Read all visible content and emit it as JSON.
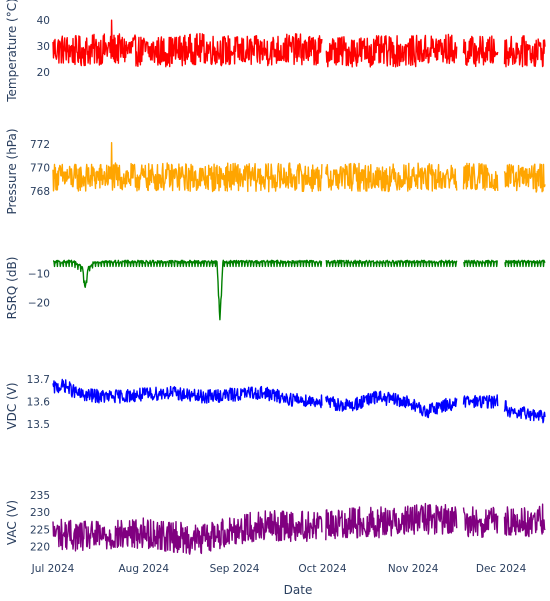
{
  "chart_data": {
    "type": "line",
    "layout": "stacked-subplots",
    "shared_x": {
      "label": "Date",
      "range": [
        "2024-07-01",
        "2024-12-16"
      ],
      "tick_values": [
        "2024-07-01",
        "2024-08-01",
        "2024-09-01",
        "2024-10-01",
        "2024-11-01",
        "2024-12-01"
      ],
      "tick_labels": [
        "Jul 2024",
        "Aug 2024",
        "Sep 2024",
        "Oct 2024",
        "Nov 2024",
        "Dec 2024"
      ]
    },
    "grid": false,
    "legend": false,
    "gaps": [
      [
        "2024-10-01",
        "2024-10-02"
      ],
      [
        "2024-11-16",
        "2024-11-18"
      ],
      [
        "2024-11-30",
        "2024-12-02"
      ]
    ],
    "panels": [
      {
        "ylabel": "Temperature (°C)",
        "color": "#ff0000",
        "ylim": [
          15,
          42
        ],
        "yticks": [
          20,
          30,
          40
        ],
        "ytick_labels": [
          "20",
          "30",
          "40"
        ],
        "series": [
          {
            "x": [
              "2024-07-01",
              "2024-07-10",
              "2024-07-20",
              "2024-08-01",
              "2024-08-10",
              "2024-08-20",
              "2024-09-01",
              "2024-09-10",
              "2024-09-20",
              "2024-10-01",
              "2024-10-10",
              "2024-10-20",
              "2024-11-01",
              "2024-11-10",
              "2024-11-20",
              "2024-12-01",
              "2024-12-10",
              "2024-12-16"
            ],
            "y": [
              29,
              28,
              29,
              28,
              28,
              29,
              28,
              28,
              29,
              28,
              28,
              28,
              28,
              29,
              28,
              28,
              28,
              28
            ],
            "spread": 6,
            "max": 40,
            "min": 16
          }
        ]
      },
      {
        "ylabel": "Pressure (hPa)",
        "color": "#ffa500",
        "ylim": [
          766.8,
          772.5
        ],
        "yticks": [
          768,
          770,
          772
        ],
        "ytick_labels": [
          "768",
          "770",
          "772"
        ],
        "series": [
          {
            "x": [
              "2024-07-01",
              "2024-07-10",
              "2024-07-20",
              "2024-08-01",
              "2024-08-10",
              "2024-08-20",
              "2024-09-01",
              "2024-09-10",
              "2024-09-20",
              "2024-10-01",
              "2024-10-10",
              "2024-10-20",
              "2024-11-01",
              "2024-11-10",
              "2024-11-20",
              "2024-12-01",
              "2024-12-10",
              "2024-12-16"
            ],
            "y": [
              769.2,
              769.1,
              769.2,
              769.1,
              769.2,
              769.1,
              769.2,
              769.1,
              769.2,
              769.1,
              769.2,
              769.1,
              769.2,
              769.1,
              769.2,
              769.1,
              769.1,
              769.1
            ],
            "spread": 1.2,
            "max": 772.1,
            "min": 767.1
          }
        ]
      },
      {
        "ylabel": "RSRQ (dB)",
        "color": "#008000",
        "ylim": [
          -27,
          -3
        ],
        "yticks": [
          -10,
          -20
        ],
        "ytick_labels": [
          "−10",
          "−20"
        ],
        "series": [
          {
            "x": [
              "2024-07-01",
              "2024-07-08",
              "2024-07-11",
              "2024-07-12",
              "2024-07-13",
              "2024-07-15",
              "2024-07-25",
              "2024-08-05",
              "2024-08-15",
              "2024-08-26",
              "2024-08-27",
              "2024-08-28",
              "2024-09-10",
              "2024-09-25",
              "2024-10-10",
              "2024-10-25",
              "2024-11-10",
              "2024-11-25",
              "2024-12-10",
              "2024-12-16"
            ],
            "y": [
              -6,
              -6,
              -8,
              -15,
              -8,
              -6,
              -6,
              -6,
              -6,
              -6,
              -26,
              -6,
              -6,
              -6,
              -6,
              -6,
              -6,
              -6,
              -6,
              -6
            ],
            "spread": 1.0
          }
        ]
      },
      {
        "ylabel": "VDC (V)",
        "color": "#0000ff",
        "ylim": [
          13.43,
          13.73
        ],
        "yticks": [
          13.5,
          13.6,
          13.7
        ],
        "ytick_labels": [
          "13.5",
          "13.6",
          "13.7"
        ],
        "series": [
          {
            "x": [
              "2024-07-01",
              "2024-07-05",
              "2024-07-10",
              "2024-07-20",
              "2024-08-01",
              "2024-08-10",
              "2024-08-20",
              "2024-09-01",
              "2024-09-10",
              "2024-09-20",
              "2024-10-01",
              "2024-10-10",
              "2024-10-20",
              "2024-11-01",
              "2024-11-05",
              "2024-11-10",
              "2024-11-20",
              "2024-12-01",
              "2024-12-05",
              "2024-12-10",
              "2024-12-16"
            ],
            "y": [
              13.66,
              13.67,
              13.63,
              13.62,
              13.63,
              13.64,
              13.62,
              13.63,
              13.64,
              13.61,
              13.6,
              13.58,
              13.62,
              13.59,
              13.55,
              13.58,
              13.6,
              13.6,
              13.54,
              13.55,
              13.53
            ],
            "spread": 0.03
          }
        ]
      },
      {
        "ylabel": "VAC (V)",
        "color": "#800080",
        "ylim": [
          217,
          237
        ],
        "yticks": [
          220,
          225,
          230,
          235
        ],
        "ytick_labels": [
          "220",
          "225",
          "230",
          "235"
        ],
        "series": [
          {
            "x": [
              "2024-07-01",
              "2024-07-10",
              "2024-07-20",
              "2024-08-01",
              "2024-08-10",
              "2024-08-20",
              "2024-09-01",
              "2024-09-10",
              "2024-09-20",
              "2024-10-01",
              "2024-10-10",
              "2024-10-20",
              "2024-11-01",
              "2024-11-10",
              "2024-11-20",
              "2024-12-01",
              "2024-12-10",
              "2024-12-16"
            ],
            "y": [
              224,
              223,
              223,
              224,
              223,
              222,
              225,
              226,
              226,
              226,
              227,
              227,
              228,
              228,
              227,
              227,
              227,
              228
            ],
            "spread": 4.5
          }
        ]
      }
    ]
  }
}
